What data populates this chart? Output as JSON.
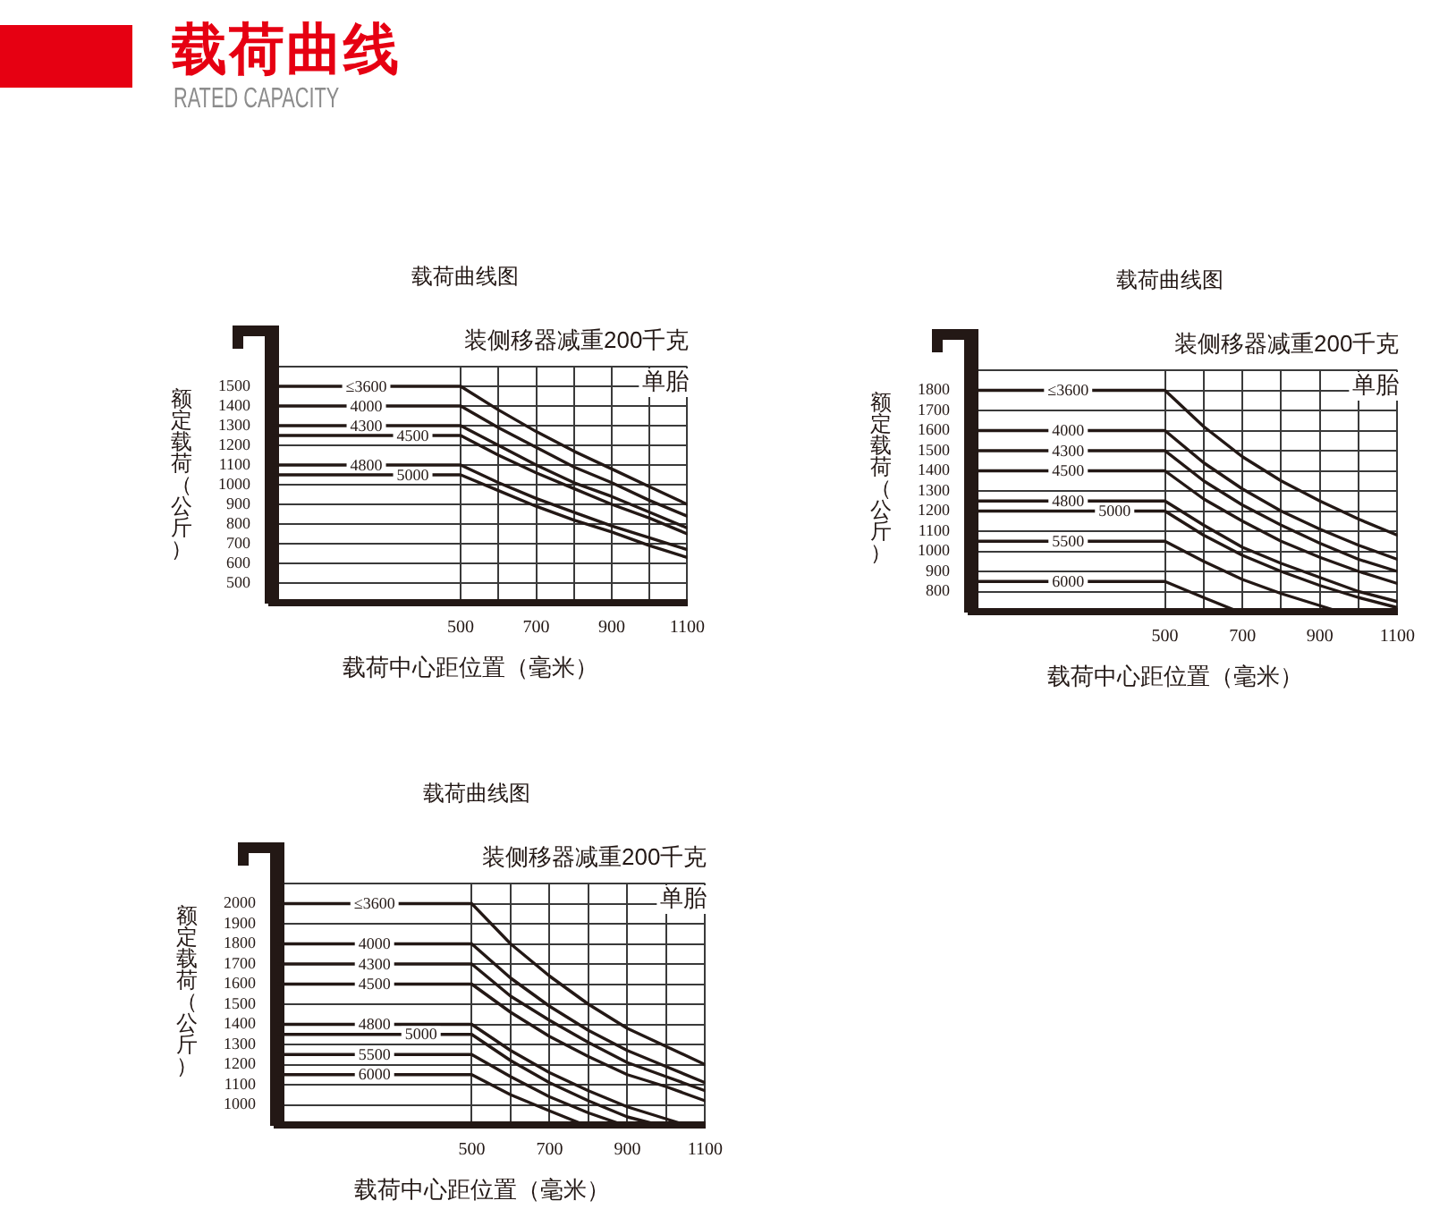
{
  "chart_data": [
    {
      "type": "other",
      "title": "载荷曲线",
      "subtitle": "RATED CAPACITY"
    },
    {
      "type": "line",
      "title": "载荷曲线图",
      "xlabel": "载荷中心距位置（毫米）",
      "ylabel": "额定载荷（公斤）",
      "annotations": [
        "装侧移器减重200千克",
        "单胎"
      ],
      "xlim": [
        0,
        1100
      ],
      "xticks": [
        500,
        {
          "value": 600,
          "label": null
        },
        700,
        {
          "value": 800,
          "label": null
        },
        900,
        {
          "value": 1000,
          "label": null
        },
        1100
      ],
      "ylim": [
        400,
        1600
      ],
      "yticks": [
        500,
        600,
        700,
        800,
        900,
        1000,
        1100,
        1200,
        1300,
        1400,
        1500,
        {
          "value": 1600,
          "label": null
        }
      ],
      "grid": true,
      "marker": "none",
      "series": [
        {
          "name": "≤3600",
          "color": "#231815",
          "x": [
            0,
            500,
            600,
            700,
            800,
            900,
            1000,
            1100
          ],
          "values": [
            1500,
            1500,
            1380,
            1270,
            1170,
            1080,
            990,
            900
          ]
        },
        {
          "name": "4000",
          "color": "#231815",
          "x": [
            0,
            500,
            600,
            700,
            800,
            900,
            1000,
            1100
          ],
          "values": [
            1400,
            1400,
            1290,
            1190,
            1090,
            1010,
            920,
            840
          ]
        },
        {
          "name": "4300",
          "color": "#231815",
          "x": [
            0,
            500,
            600,
            700,
            800,
            900,
            1000,
            1100
          ],
          "values": [
            1300,
            1300,
            1200,
            1100,
            1010,
            940,
            860,
            780
          ]
        },
        {
          "name": "4500",
          "color": "#231815",
          "x": [
            0,
            500,
            600,
            700,
            800,
            900,
            1000,
            1100
          ],
          "values": [
            1250,
            1250,
            1150,
            1060,
            980,
            900,
            830,
            750
          ]
        },
        {
          "name": "4800",
          "color": "#231815",
          "x": [
            0,
            500,
            600,
            700,
            800,
            900,
            1000,
            1100
          ],
          "values": [
            1100,
            1100,
            1010,
            930,
            860,
            790,
            730,
            670
          ]
        },
        {
          "name": "5000",
          "color": "#231815",
          "x": [
            0,
            500,
            600,
            700,
            800,
            900,
            1000,
            1100
          ],
          "values": [
            1050,
            1050,
            970,
            890,
            820,
            760,
            690,
            630
          ]
        }
      ]
    },
    {
      "type": "line",
      "title": "载荷曲线图",
      "xlabel": "载荷中心距位置（毫米）",
      "ylabel": "额定载荷（公斤）",
      "annotations": [
        "装侧移器减重200千克",
        "单胎"
      ],
      "xlim": [
        0,
        1100
      ],
      "xticks": [
        500,
        {
          "value": 600,
          "label": null
        },
        700,
        {
          "value": 800,
          "label": null
        },
        900,
        {
          "value": 1000,
          "label": null
        },
        1100
      ],
      "ylim": [
        700,
        1900
      ],
      "yticks": [
        800,
        900,
        1000,
        1100,
        1200,
        1300,
        1400,
        1500,
        1600,
        1700,
        1800,
        {
          "value": 1900,
          "label": null
        }
      ],
      "grid": true,
      "marker": "none",
      "series": [
        {
          "name": "≤3600",
          "color": "#231815",
          "x": [
            0,
            500,
            600,
            700,
            800,
            900,
            1000,
            1100
          ],
          "values": [
            1800,
            1800,
            1620,
            1470,
            1350,
            1250,
            1160,
            1080
          ]
        },
        {
          "name": "4000",
          "color": "#231815",
          "x": [
            0,
            500,
            600,
            700,
            800,
            900,
            1000,
            1100
          ],
          "values": [
            1600,
            1600,
            1440,
            1310,
            1200,
            1110,
            1030,
            960
          ]
        },
        {
          "name": "4300",
          "color": "#231815",
          "x": [
            0,
            500,
            600,
            700,
            800,
            900,
            1000,
            1100
          ],
          "values": [
            1500,
            1500,
            1350,
            1230,
            1130,
            1040,
            960,
            900
          ]
        },
        {
          "name": "4500",
          "color": "#231815",
          "x": [
            0,
            500,
            600,
            700,
            800,
            900,
            1000,
            1100
          ],
          "values": [
            1400,
            1400,
            1260,
            1150,
            1050,
            970,
            900,
            840
          ]
        },
        {
          "name": "4800",
          "color": "#231815",
          "x": [
            0,
            500,
            600,
            700,
            800,
            900,
            1000,
            1100
          ],
          "values": [
            1250,
            1250,
            1130,
            1020,
            940,
            870,
            800,
            750
          ]
        },
        {
          "name": "5000",
          "color": "#231815",
          "x": [
            0,
            500,
            600,
            700,
            800,
            900,
            1000,
            1100
          ],
          "values": [
            1200,
            1200,
            1080,
            980,
            900,
            830,
            770,
            720
          ]
        },
        {
          "name": "5500",
          "color": "#231815",
          "x": [
            0,
            500,
            600,
            700,
            800,
            900,
            950
          ],
          "values": [
            1050,
            1050,
            950,
            860,
            790,
            730,
            700
          ]
        },
        {
          "name": "6000",
          "color": "#231815",
          "x": [
            0,
            500,
            600,
            690
          ],
          "values": [
            850,
            850,
            770,
            700
          ]
        }
      ]
    },
    {
      "type": "line",
      "title": "载荷曲线图",
      "xlabel": "载荷中心距位置（毫米）",
      "ylabel": "额定载荷（公斤）",
      "annotations": [
        "装侧移器减重200千克",
        "单胎"
      ],
      "xlim": [
        0,
        1100
      ],
      "xticks": [
        500,
        {
          "value": 600,
          "label": null
        },
        700,
        {
          "value": 800,
          "label": null
        },
        900,
        {
          "value": 1000,
          "label": null
        },
        1100
      ],
      "ylim": [
        900,
        2100
      ],
      "yticks": [
        1000,
        1100,
        1200,
        1300,
        1400,
        1500,
        1600,
        1700,
        1800,
        1900,
        2000,
        {
          "value": 2100,
          "label": null
        }
      ],
      "grid": true,
      "marker": "none",
      "series": [
        {
          "name": "≤3600",
          "color": "#231815",
          "x": [
            0,
            500,
            600,
            700,
            800,
            900,
            1000,
            1100
          ],
          "values": [
            2000,
            2000,
            1800,
            1640,
            1500,
            1380,
            1290,
            1200
          ]
        },
        {
          "name": "4000",
          "color": "#231815",
          "x": [
            0,
            500,
            600,
            700,
            800,
            900,
            1000,
            1100
          ],
          "values": [
            1800,
            1800,
            1630,
            1490,
            1370,
            1270,
            1190,
            1110
          ]
        },
        {
          "name": "4300",
          "color": "#231815",
          "x": [
            0,
            500,
            600,
            700,
            800,
            900,
            1000,
            1100
          ],
          "values": [
            1700,
            1700,
            1540,
            1420,
            1310,
            1210,
            1140,
            1070
          ]
        },
        {
          "name": "4500",
          "color": "#231815",
          "x": [
            0,
            500,
            600,
            700,
            800,
            900,
            1000,
            1100
          ],
          "values": [
            1600,
            1600,
            1460,
            1340,
            1240,
            1150,
            1090,
            1020
          ]
        },
        {
          "name": "4800",
          "color": "#231815",
          "x": [
            0,
            500,
            600,
            700,
            800,
            900,
            1000,
            1050
          ],
          "values": [
            1400,
            1400,
            1270,
            1160,
            1070,
            990,
            930,
            900
          ]
        },
        {
          "name": "5000",
          "color": "#231815",
          "x": [
            0,
            500,
            600,
            700,
            800,
            900,
            980
          ],
          "values": [
            1350,
            1350,
            1220,
            1110,
            1020,
            940,
            900
          ]
        },
        {
          "name": "5500",
          "color": "#231815",
          "x": [
            0,
            500,
            600,
            700,
            800,
            890
          ],
          "values": [
            1250,
            1250,
            1140,
            1040,
            960,
            900
          ]
        },
        {
          "name": "6000",
          "color": "#231815",
          "x": [
            0,
            500,
            600,
            700,
            790
          ],
          "values": [
            1150,
            1150,
            1050,
            970,
            900
          ]
        }
      ]
    }
  ]
}
